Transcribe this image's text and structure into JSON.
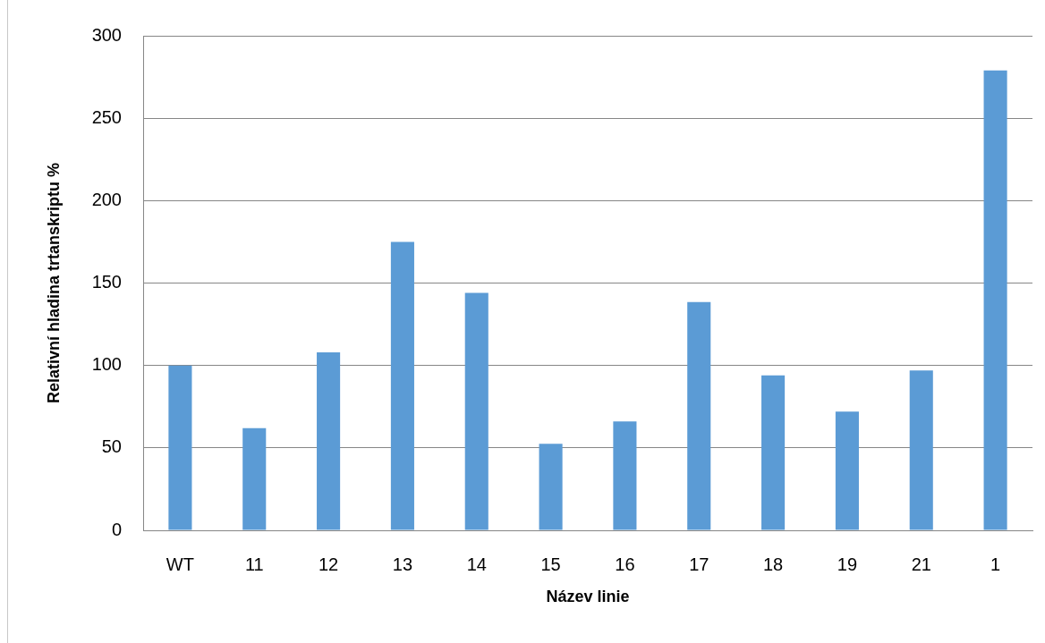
{
  "chart_data": {
    "type": "bar",
    "xlabel": "Název linie",
    "ylabel": "Relativní hladina trtanskriptu %",
    "categories": [
      "WT",
      "11",
      "12",
      "13",
      "14",
      "15",
      "16",
      "17",
      "18",
      "19",
      "21",
      "1"
    ],
    "values": [
      100,
      62,
      108,
      175,
      144,
      52.5,
      66,
      138.5,
      94,
      72,
      97,
      279
    ],
    "color": "#5b9bd5",
    "ylim": [
      0,
      300
    ],
    "yticks": [
      0,
      50,
      100,
      150,
      200,
      250,
      300
    ],
    "grid": "y"
  }
}
